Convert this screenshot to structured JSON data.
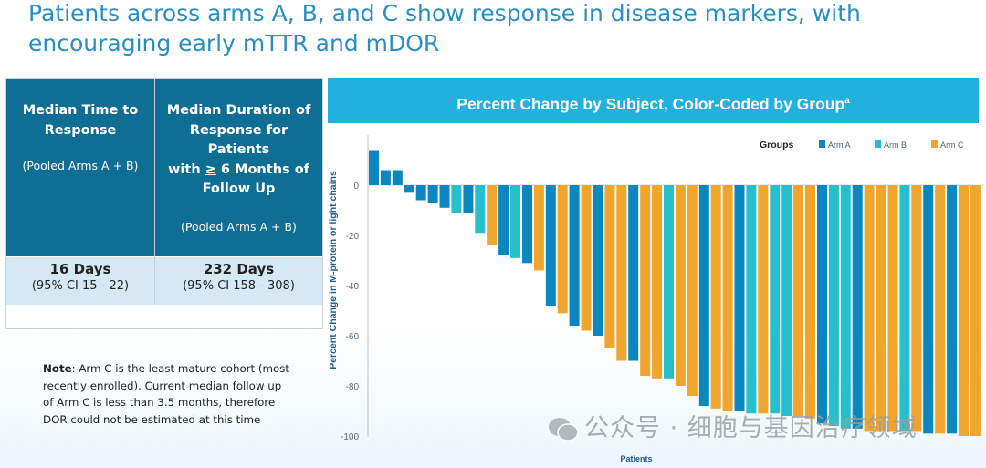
{
  "slide_title": "Patients across arms A, B, and C show response in disease markers, with encouraging early mTTR and mDOR",
  "summary_table": {
    "columns": [
      {
        "heading": "Median Time to Response",
        "subheading": "(Pooled Arms A + B)",
        "value": "16 Days",
        "ci": "(95% CI 15 - 22)"
      },
      {
        "heading_line1": "Median Duration of",
        "heading_line2": "Response for Patients",
        "heading_pre": "with ",
        "heading_geq": "≥",
        "heading_post": " 6 Months of",
        "heading_line4": "Follow Up",
        "subheading": "(Pooled Arms A + B)",
        "value": "232 Days",
        "ci": "(95% CI 158 - 308)"
      }
    ]
  },
  "note": {
    "label": "Note",
    "text": ": Arm C is the least mature cohort (most recently enrolled). Current median follow up of Arm C is less than 3.5 months, therefore DOR could not be estimated at this time"
  },
  "watermark": "公众号 · 细胞与基因治疗领域",
  "chart_data": {
    "type": "bar",
    "title": "Percent Change by Subject, Color-Coded by Group",
    "title_superscript": "a",
    "xlabel": "Patients",
    "ylabel": "Percent Change in M-protein or light chains",
    "ylim": [
      -100,
      15
    ],
    "yticks": [
      0,
      -20,
      -40,
      -60,
      -80,
      -100
    ],
    "grid": false,
    "legend": {
      "title": "Groups",
      "placement": "top-right",
      "entries": [
        {
          "name": "Arm A",
          "color": "#0b87bf"
        },
        {
          "name": "Arm B",
          "color": "#27bfcc"
        },
        {
          "name": "Arm C",
          "color": "#f0a52c"
        }
      ]
    },
    "group_colors": {
      "A": "#0b87bf",
      "B": "#27bfcc",
      "C": "#f0a52c"
    },
    "groups": [
      "A",
      "A",
      "A",
      "A",
      "A",
      "A",
      "A",
      "B",
      "A",
      "B",
      "C",
      "A",
      "B",
      "A",
      "C",
      "A",
      "C",
      "A",
      "C",
      "A",
      "C",
      "C",
      "A",
      "C",
      "C",
      "B",
      "C",
      "C",
      "A",
      "C",
      "C",
      "A",
      "B",
      "C",
      "B",
      "B",
      "C",
      "C",
      "A",
      "B",
      "B",
      "A",
      "C",
      "C",
      "C",
      "B",
      "C",
      "A",
      "C",
      "A",
      "C",
      "C"
    ],
    "values": [
      14,
      6,
      6,
      -3,
      -6,
      -7,
      -9,
      -11,
      -11,
      -19,
      -24,
      -28,
      -29,
      -31,
      -34,
      -48,
      -51,
      -56,
      -58,
      -60,
      -65,
      -70,
      -70,
      -76,
      -77,
      -77,
      -80,
      -84,
      -88,
      -89,
      -90,
      -90,
      -91,
      -91,
      -91,
      -92,
      -92,
      -93,
      -95,
      -96,
      -97,
      -97,
      -98,
      -98,
      -98,
      -98,
      -98,
      -99,
      -99,
      -99,
      -100,
      -100
    ]
  }
}
